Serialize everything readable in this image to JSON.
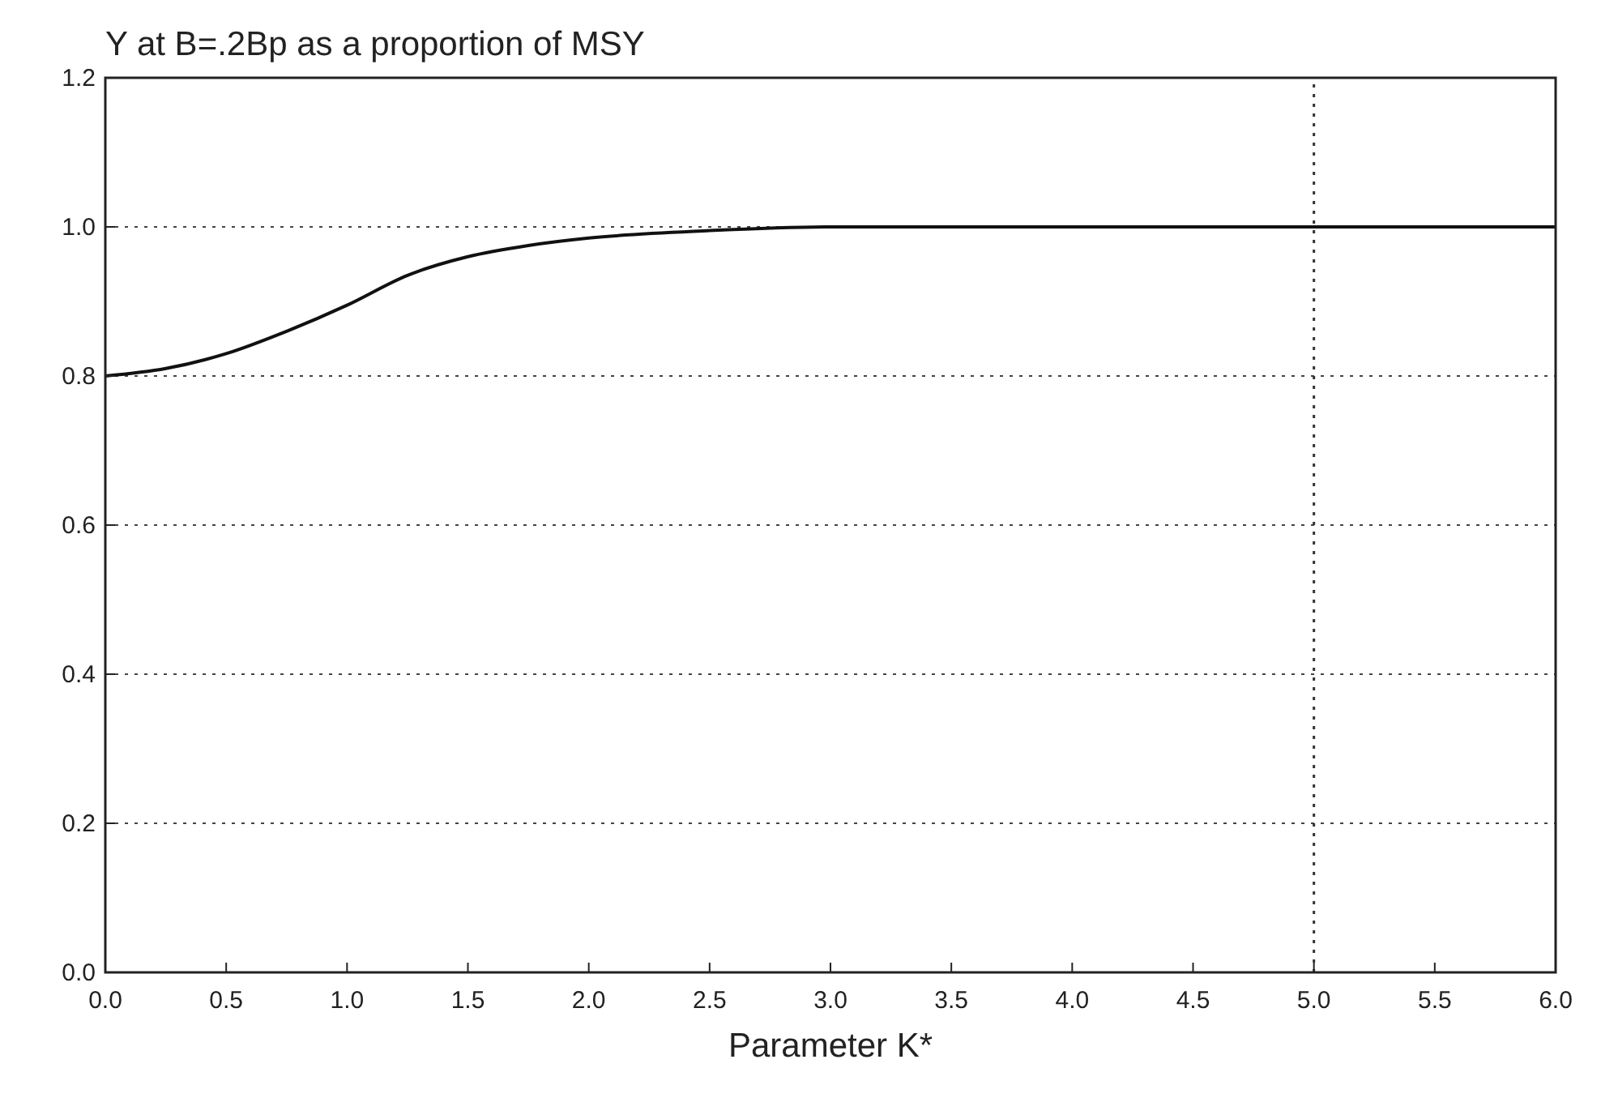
{
  "chart_data": {
    "type": "line",
    "title": "Y at B=.2Bp as a proportion of MSY",
    "xlabel": "Parameter K*",
    "x": [
      0,
      0.25,
      0.5,
      0.75,
      1.0,
      1.25,
      1.5,
      1.75,
      2.0,
      2.5,
      3.0,
      4.0,
      5.0,
      6.0
    ],
    "series": [
      {
        "color": "#111111",
        "values": [
          0.8,
          0.81,
          0.83,
          0.86,
          0.895,
          0.935,
          0.96,
          0.975,
          0.985,
          0.995,
          1.0,
          1.0,
          1.0,
          1.0
        ]
      }
    ],
    "xlim": [
      0,
      6
    ],
    "xticks": [
      {
        "value": 0,
        "label": "0.0"
      },
      0.5,
      {
        "value": 1,
        "label": "1.0"
      },
      1.5,
      {
        "value": 2,
        "label": "2.0"
      },
      2.5,
      {
        "value": 3,
        "label": "3.0"
      },
      3.5,
      {
        "value": 4,
        "label": "4.0"
      },
      4.5,
      {
        "value": 5,
        "label": "5.0"
      },
      5.5,
      {
        "value": 6,
        "label": "6.0"
      }
    ],
    "ylim": [
      0,
      1.2
    ],
    "yticks": [
      {
        "value": 0,
        "label": "0.0"
      },
      0.2,
      0.4,
      0.6,
      0.8,
      {
        "value": 1,
        "label": "1.0"
      },
      1.2
    ],
    "grid": "y",
    "marker": "none",
    "line_style": "solid",
    "ref_lines": [
      {
        "axis": "x",
        "value": 5,
        "line_style": "dotted"
      }
    ]
  }
}
